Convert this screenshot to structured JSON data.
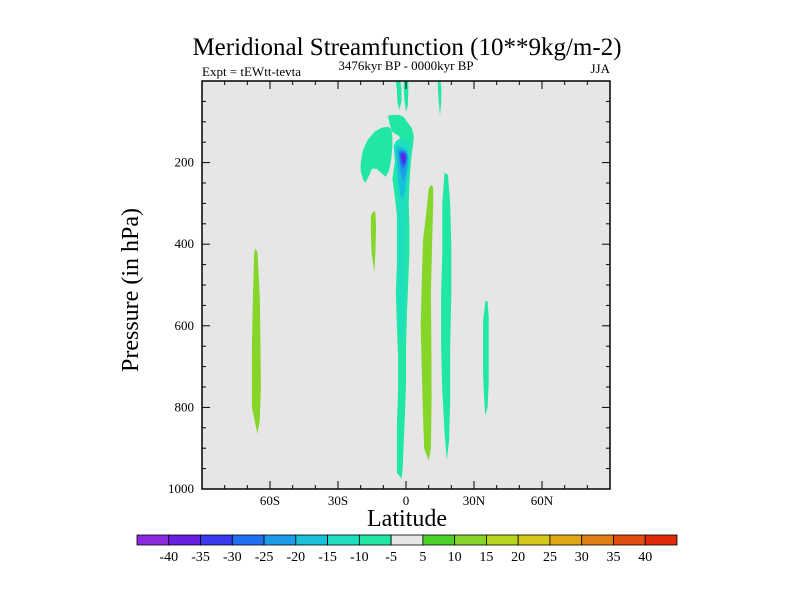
{
  "chart_data": {
    "type": "heatmap",
    "title": "Meridional Streamfunction (10**9kg/m-2)",
    "subtitle_left": "Expt = tEWtt-tevta",
    "subtitle_center": "3476kyr BP - 0000kyr BP",
    "subtitle_right": "JJA",
    "xlabel": "Latitude",
    "ylabel": "Pressure (in hPa)",
    "xlim": [
      -90,
      90
    ],
    "ylim": [
      1000,
      0
    ],
    "xticks": [
      {
        "value": -60,
        "label": "60S"
      },
      {
        "value": -30,
        "label": "30S"
      },
      {
        "value": 0,
        "label": "0"
      },
      {
        "value": 30,
        "label": "30N"
      },
      {
        "value": 60,
        "label": "60N"
      }
    ],
    "yticks": [
      {
        "value": 200,
        "label": "200"
      },
      {
        "value": 400,
        "label": "400"
      },
      {
        "value": 600,
        "label": "600"
      },
      {
        "value": 800,
        "label": "800"
      },
      {
        "value": 1000,
        "label": "1000"
      }
    ],
    "background_color": "#e6e6e6",
    "colorbar": {
      "labels": [
        "-40",
        "-35",
        "-30",
        "-25",
        "-20",
        "-15",
        "-10",
        "-5",
        "5",
        "10",
        "15",
        "20",
        "25",
        "30",
        "35",
        "40"
      ],
      "colors": [
        "#8a2be2",
        "#6a1fe0",
        "#3a3af0",
        "#1f6ff0",
        "#1a9ce6",
        "#18c0d8",
        "#1ee0c0",
        "#20e6a6",
        "#e6e6e6",
        "#4ad22a",
        "#86d62a",
        "#b8d61c",
        "#d6c81a",
        "#e0a614",
        "#e07e12",
        "#e04e10",
        "#e02a0c"
      ]
    },
    "contours": [
      {
        "name": "contour-tropical-negative",
        "level": "-5",
        "points": [
          [
            -8,
            85
          ],
          [
            -7,
            110
          ],
          [
            -6,
            125
          ],
          [
            -3,
            135
          ],
          [
            -2,
            155
          ],
          [
            -3,
            175
          ],
          [
            -5,
            200
          ],
          [
            -6,
            240
          ],
          [
            -5,
            280
          ],
          [
            -4,
            330
          ],
          [
            -4,
            380
          ],
          [
            -4,
            450
          ],
          [
            -4.5,
            520
          ],
          [
            -4,
            600
          ],
          [
            -3.5,
            680
          ],
          [
            -3.5,
            760
          ],
          [
            -4,
            840
          ],
          [
            -4,
            910
          ],
          [
            -4,
            960
          ],
          [
            -2,
            975
          ],
          [
            -1.5,
            950
          ],
          [
            -1,
            890
          ],
          [
            -0.5,
            820
          ],
          [
            0,
            740
          ],
          [
            0,
            650
          ],
          [
            0.5,
            560
          ],
          [
            1,
            490
          ],
          [
            1.5,
            420
          ],
          [
            1.5,
            360
          ],
          [
            1.2,
            300
          ],
          [
            1.5,
            250
          ],
          [
            2,
            210
          ],
          [
            2.5,
            180
          ],
          [
            3,
            160
          ],
          [
            3.5,
            135
          ],
          [
            2.5,
            115
          ],
          [
            0.5,
            100
          ],
          [
            -1,
            88
          ],
          [
            -3,
            83
          ],
          [
            -6,
            83
          ]
        ]
      },
      {
        "name": "contour-sh-jet-branch",
        "level": "-5",
        "points": [
          [
            -20,
            200
          ],
          [
            -19,
            170
          ],
          [
            -17,
            145
          ],
          [
            -14,
            125
          ],
          [
            -11,
            115
          ],
          [
            -8,
            112
          ],
          [
            -6.5,
            118
          ],
          [
            -6,
            135
          ],
          [
            -6,
            160
          ],
          [
            -6.5,
            190
          ],
          [
            -7.5,
            220
          ],
          [
            -9,
            235
          ],
          [
            -11,
            225
          ],
          [
            -13,
            215
          ],
          [
            -15,
            215
          ],
          [
            -17,
            240
          ],
          [
            -18,
            250
          ],
          [
            -19,
            240
          ],
          [
            -20,
            220
          ]
        ]
      },
      {
        "name": "contour-top-strip-a",
        "level": "-5",
        "points": [
          [
            -4.5,
            -5
          ],
          [
            -4,
            20
          ],
          [
            -3.8,
            50
          ],
          [
            -3,
            70
          ],
          [
            -2,
            50
          ],
          [
            -2,
            20
          ],
          [
            -2.5,
            -5
          ]
        ]
      },
      {
        "name": "contour-top-strip-b",
        "level": "-5",
        "points": [
          [
            -1,
            -5
          ],
          [
            -1,
            20
          ],
          [
            -0.6,
            50
          ],
          [
            0,
            75
          ],
          [
            0.8,
            60
          ],
          [
            1,
            30
          ],
          [
            1,
            -5
          ]
        ]
      },
      {
        "name": "contour-top-strip-c",
        "level": "-5",
        "points": [
          [
            14,
            0
          ],
          [
            14.3,
            40
          ],
          [
            15,
            85
          ],
          [
            15.5,
            55
          ],
          [
            15.6,
            20
          ],
          [
            15.2,
            0
          ]
        ]
      },
      {
        "name": "contour-nh-strip",
        "level": "-5",
        "points": [
          [
            17,
            225
          ],
          [
            16,
            300
          ],
          [
            16,
            420
          ],
          [
            15.5,
            520
          ],
          [
            15.5,
            650
          ],
          [
            16,
            760
          ],
          [
            17,
            860
          ],
          [
            18,
            930
          ],
          [
            19,
            880
          ],
          [
            19.5,
            780
          ],
          [
            19.5,
            650
          ],
          [
            20,
            520
          ],
          [
            20,
            400
          ],
          [
            19.5,
            300
          ],
          [
            18.5,
            230
          ]
        ]
      },
      {
        "name": "contour-nh-sub-strip",
        "level": "-5",
        "points": [
          [
            35,
            540
          ],
          [
            34,
            590
          ],
          [
            34,
            650
          ],
          [
            34,
            720
          ],
          [
            34.5,
            780
          ],
          [
            35,
            820
          ],
          [
            36,
            800
          ],
          [
            36.5,
            740
          ],
          [
            36.5,
            650
          ],
          [
            36.5,
            580
          ],
          [
            36,
            540
          ]
        ]
      },
      {
        "name": "contour-core-inner",
        "level": "-10",
        "points": [
          [
            -5.5,
            160
          ],
          [
            -5,
            190
          ],
          [
            -4,
            230
          ],
          [
            -3.5,
            300
          ],
          [
            -3.5,
            400
          ],
          [
            -3.5,
            500
          ],
          [
            -3,
            600
          ],
          [
            -2,
            650
          ],
          [
            -1,
            600
          ],
          [
            -0.5,
            500
          ],
          [
            -0.3,
            400
          ],
          [
            0.2,
            300
          ],
          [
            0.8,
            250
          ],
          [
            1.5,
            210
          ],
          [
            2,
            185
          ],
          [
            1.5,
            160
          ],
          [
            0,
            145
          ],
          [
            -2.5,
            140
          ],
          [
            -4.5,
            148
          ]
        ]
      },
      {
        "name": "contour-core-10",
        "level": "-15",
        "points": [
          [
            -4.5,
            165
          ],
          [
            -4,
            200
          ],
          [
            -3.2,
            250
          ],
          [
            -2.5,
            280
          ],
          [
            -1.5,
            290
          ],
          [
            -0.5,
            270
          ],
          [
            0.2,
            240
          ],
          [
            1,
            210
          ],
          [
            1.2,
            190
          ],
          [
            0.5,
            170
          ],
          [
            -1.5,
            162
          ],
          [
            -3.5,
            160
          ]
        ]
      },
      {
        "name": "contour-core-20",
        "level": "-20",
        "points": [
          [
            -3.5,
            170
          ],
          [
            -3,
            200
          ],
          [
            -2.2,
            230
          ],
          [
            -1.2,
            245
          ],
          [
            -0.2,
            230
          ],
          [
            0.5,
            205
          ],
          [
            0.8,
            185
          ],
          [
            0,
            172
          ],
          [
            -1.8,
            168
          ]
        ]
      },
      {
        "name": "contour-core-25",
        "level": "-25",
        "points": [
          [
            -3,
            175
          ],
          [
            -2.5,
            200
          ],
          [
            -1.6,
            215
          ],
          [
            -0.6,
            210
          ],
          [
            0.2,
            195
          ],
          [
            0.4,
            180
          ],
          [
            -0.8,
            174
          ],
          [
            -2,
            172
          ]
        ]
      },
      {
        "name": "contour-core-30",
        "level": "-30",
        "points": [
          [
            -2.5,
            178
          ],
          [
            -2,
            195
          ],
          [
            -1.2,
            205
          ],
          [
            -0.3,
            200
          ],
          [
            0.2,
            188
          ],
          [
            -0.5,
            178
          ],
          [
            -1.5,
            176
          ]
        ]
      },
      {
        "name": "contour-core-35",
        "level": "-35",
        "points": [
          [
            -2,
            180
          ],
          [
            -1.5,
            192
          ],
          [
            -0.8,
            196
          ],
          [
            -0.2,
            190
          ],
          [
            -0.3,
            182
          ],
          [
            -1.2,
            179
          ]
        ]
      },
      {
        "name": "contour-sh-positive-strip",
        "level": "10",
        "points": [
          [
            -67,
            425
          ],
          [
            -67.5,
            520
          ],
          [
            -68,
            650
          ],
          [
            -68,
            800
          ],
          [
            -66.5,
            840
          ],
          [
            -65.5,
            865
          ],
          [
            -64.5,
            830
          ],
          [
            -64,
            750
          ],
          [
            -64.2,
            650
          ],
          [
            -64.5,
            530
          ],
          [
            -65.5,
            420
          ],
          [
            -66.5,
            410
          ]
        ]
      },
      {
        "name": "contour-sh-small-positive",
        "level": "10",
        "points": [
          [
            -15.5,
            330
          ],
          [
            -15.5,
            370
          ],
          [
            -15.2,
            420
          ],
          [
            -14,
            470
          ],
          [
            -13.5,
            420
          ],
          [
            -13.2,
            360
          ],
          [
            -13.5,
            320
          ],
          [
            -14.5,
            320
          ]
        ]
      },
      {
        "name": "contour-nh-positive-strip",
        "level": "10",
        "points": [
          [
            10,
            265
          ],
          [
            9,
            320
          ],
          [
            7.5,
            390
          ],
          [
            7,
            480
          ],
          [
            6.5,
            600
          ],
          [
            7,
            720
          ],
          [
            7.5,
            820
          ],
          [
            8,
            900
          ],
          [
            10,
            930
          ],
          [
            11,
            900
          ],
          [
            11.3,
            780
          ],
          [
            11.2,
            650
          ],
          [
            11,
            520
          ],
          [
            11.5,
            400
          ],
          [
            12,
            300
          ],
          [
            12,
            260
          ],
          [
            11,
            255
          ]
        ]
      }
    ]
  }
}
